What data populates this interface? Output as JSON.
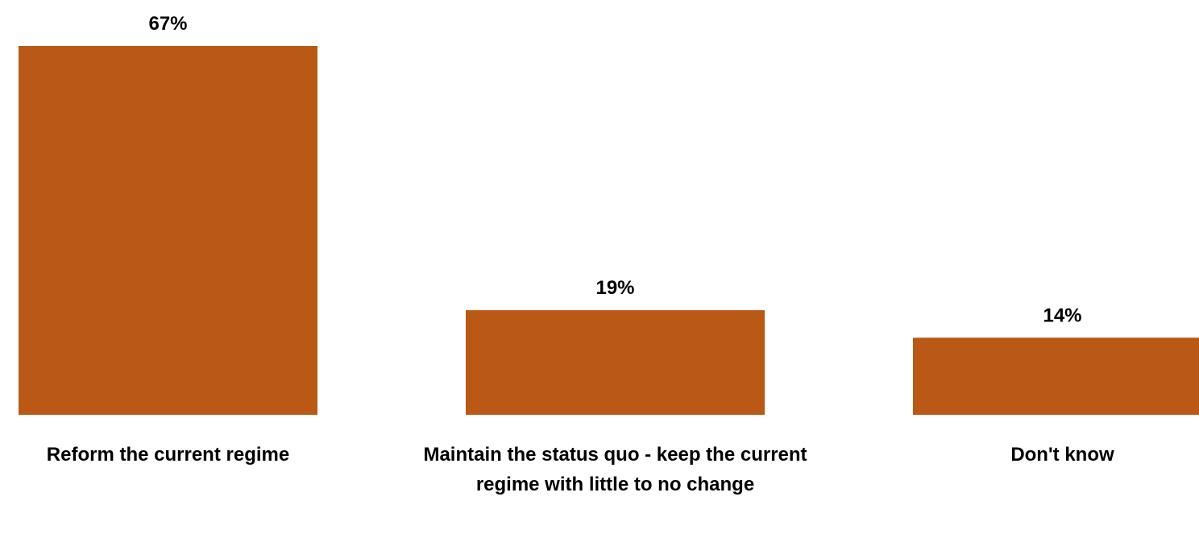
{
  "chart_data": {
    "type": "bar",
    "categories": [
      "Reform the current regime",
      "Maintain the status quo - keep the current regime with little to no change",
      "Don't know"
    ],
    "values": [
      67,
      19,
      14
    ],
    "value_labels": [
      "67%",
      "19%",
      "14%"
    ],
    "title": "",
    "xlabel": "",
    "ylabel": "",
    "ylim": [
      0,
      67
    ],
    "grid": false,
    "legend": "none",
    "bar_color": "#B95915"
  }
}
